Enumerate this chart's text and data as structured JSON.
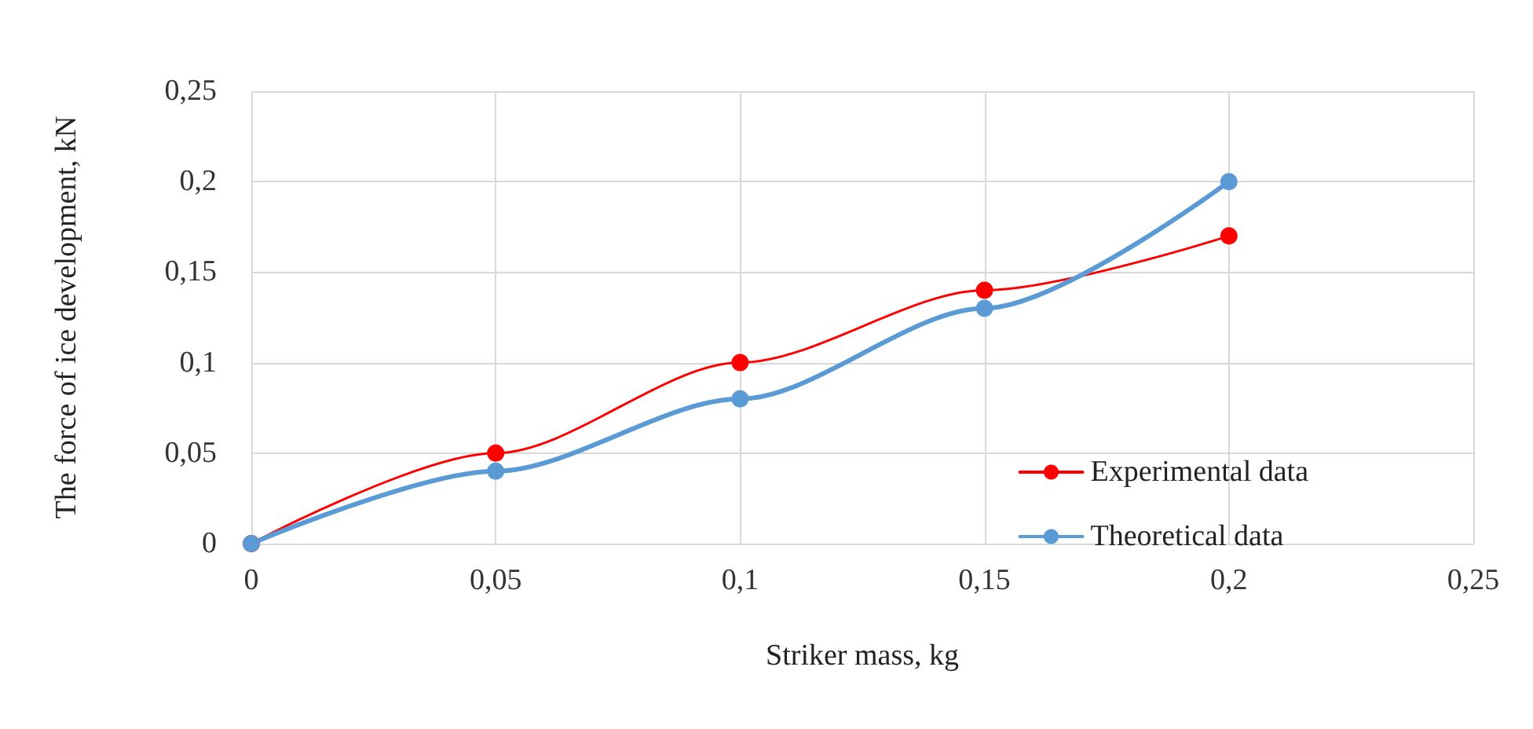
{
  "chart_data": {
    "type": "line",
    "xlabel": "Striker mass, kg",
    "ylabel": "The force of ice development, kN",
    "x": [
      0,
      0.05,
      0.1,
      0.15,
      0.2
    ],
    "series": [
      {
        "name": "Experimental data",
        "color": "#ff0000",
        "values": [
          0,
          0.05,
          0.1,
          0.14,
          0.17
        ]
      },
      {
        "name": "Theoretical data",
        "color": "#5b9bd5",
        "values": [
          0,
          0.04,
          0.08,
          0.13,
          0.2
        ]
      }
    ],
    "xlim": [
      0,
      0.25
    ],
    "ylim": [
      0,
      0.25
    ],
    "xticks": [
      0,
      {
        "value": 0.05,
        "label": "0,05"
      },
      {
        "value": 0.1,
        "label": "0,1"
      },
      {
        "value": 0.15,
        "label": "0,15"
      },
      {
        "value": 0.2,
        "label": "0,2"
      },
      {
        "value": 0.25,
        "label": "0,25"
      }
    ],
    "yticks": [
      0,
      {
        "value": 0.05,
        "label": "0,05"
      },
      {
        "value": 0.1,
        "label": "0,1"
      },
      {
        "value": 0.15,
        "label": "0,15"
      },
      {
        "value": 0.2,
        "label": "0,2"
      },
      {
        "value": 0.25,
        "label": "0,25"
      }
    ],
    "grid": true,
    "legend": "bottom right",
    "marker": "circle",
    "line_style": "solid"
  }
}
